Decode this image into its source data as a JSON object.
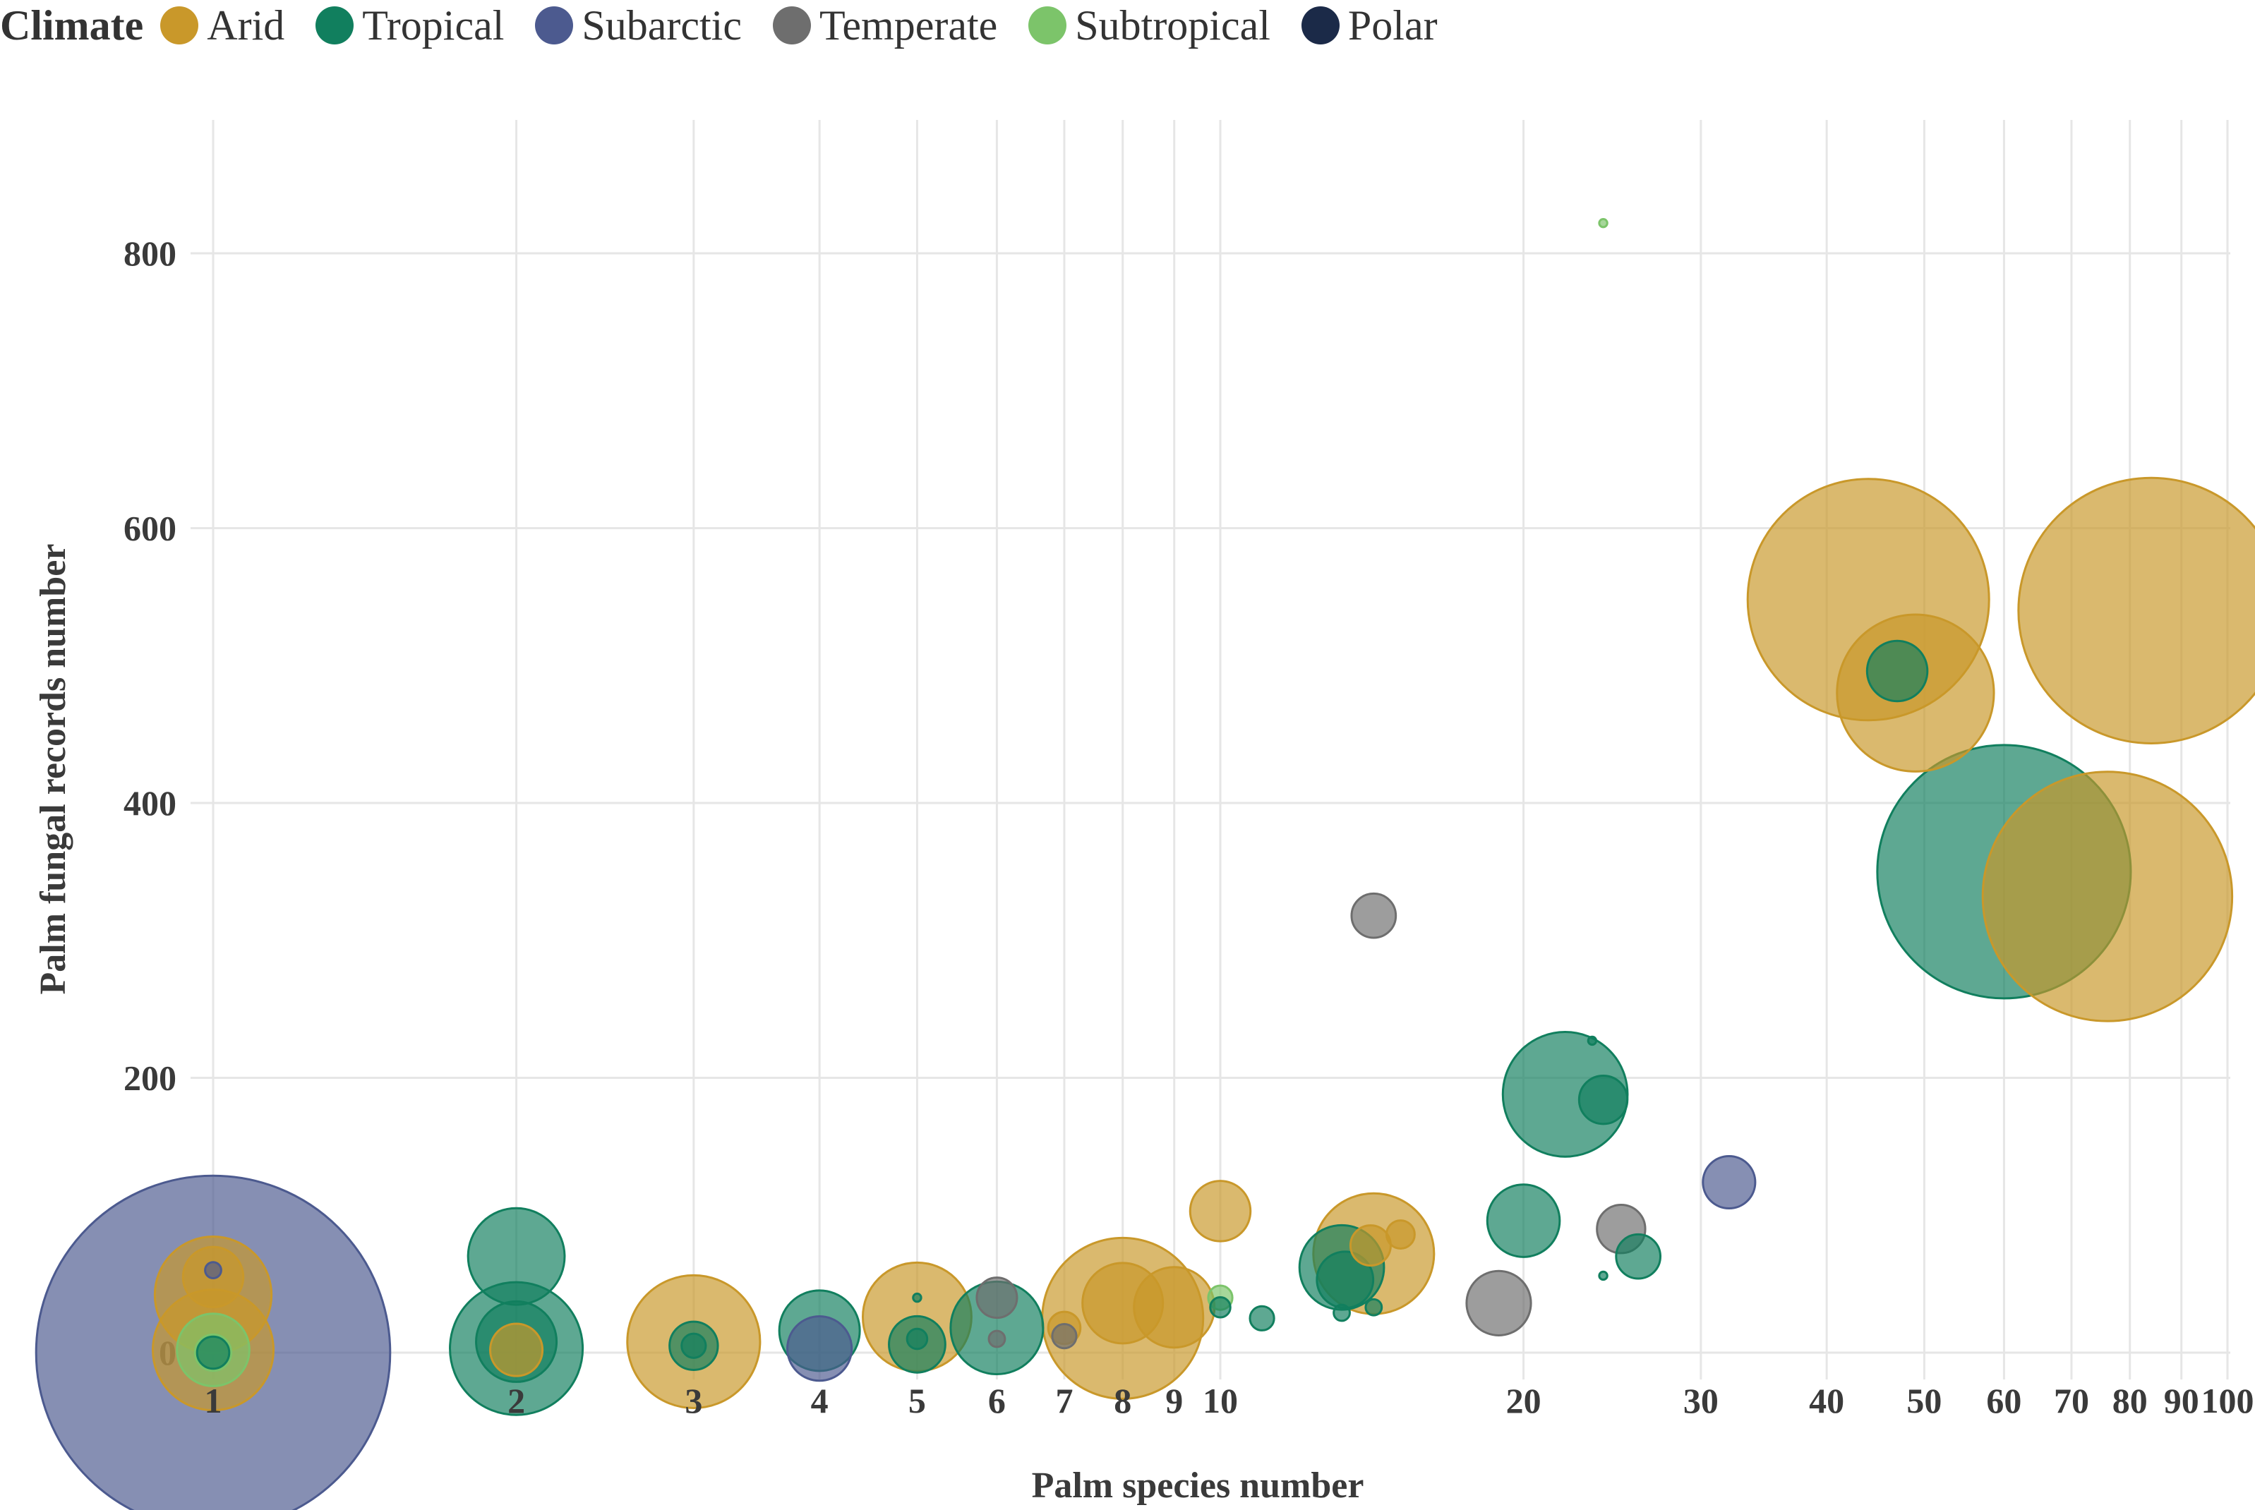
{
  "chart_data": {
    "type": "scatter",
    "subtype": "bubble",
    "title": "",
    "xlabel": "Palm species number",
    "ylabel": "Palm fungal records number",
    "x_scale": "log",
    "xlim": [
      1,
      100
    ],
    "ylim": [
      -20,
      890
    ],
    "x_ticks": [
      1,
      2,
      3,
      4,
      5,
      6,
      7,
      8,
      9,
      10,
      20,
      30,
      40,
      50,
      60,
      70,
      80,
      90,
      100
    ],
    "x_tick_labels": [
      "1",
      "2",
      "3",
      "4",
      "5",
      "6",
      "7",
      "8",
      "9",
      "10",
      "20",
      "30",
      "40",
      "50",
      "60",
      "70",
      "80",
      "90",
      "100"
    ],
    "y_ticks": [
      0,
      200,
      400,
      600,
      800
    ],
    "y_tick_labels": [
      "0",
      "200",
      "400",
      "600",
      "800"
    ],
    "grid": true,
    "legend": {
      "title": "Climate",
      "position": "top-left",
      "entries": [
        {
          "name": "Arid",
          "color": "#C9982A"
        },
        {
          "name": "Tropical",
          "color": "#117F5E"
        },
        {
          "name": "Subarctic",
          "color": "#4C5A8F"
        },
        {
          "name": "Temperate",
          "color": "#6E6E6E"
        },
        {
          "name": "Subtropical",
          "color": "#7CC46A"
        },
        {
          "name": "Polar",
          "color": "#1B2A48"
        }
      ]
    },
    "size_note": "relative bubble size",
    "points": [
      {
        "climate": "Subarctic",
        "x": 1,
        "y": 0,
        "size": 88
      },
      {
        "climate": "Arid",
        "x": 1,
        "y": 42,
        "size": 29
      },
      {
        "climate": "Arid",
        "x": 1,
        "y": 2,
        "size": 30
      },
      {
        "climate": "Arid",
        "x": 1,
        "y": 55,
        "size": 15
      },
      {
        "climate": "Subtropical",
        "x": 1,
        "y": 2,
        "size": 18
      },
      {
        "climate": "Subtropical",
        "x": 1,
        "y": 0,
        "size": 9
      },
      {
        "climate": "Tropical",
        "x": 1,
        "y": 0,
        "size": 8
      },
      {
        "climate": "Subarctic",
        "x": 1,
        "y": 60,
        "size": 4
      },
      {
        "climate": "Tropical",
        "x": 2,
        "y": 3,
        "size": 33
      },
      {
        "climate": "Tropical",
        "x": 2,
        "y": 70,
        "size": 24
      },
      {
        "climate": "Tropical",
        "x": 2,
        "y": 8,
        "size": 20
      },
      {
        "climate": "Arid",
        "x": 2,
        "y": 2,
        "size": 13
      },
      {
        "climate": "Arid",
        "x": 3,
        "y": 8,
        "size": 33
      },
      {
        "climate": "Tropical",
        "x": 3,
        "y": 5,
        "size": 12
      },
      {
        "climate": "Tropical",
        "x": 3,
        "y": 5,
        "size": 6
      },
      {
        "climate": "Tropical",
        "x": 4,
        "y": 16,
        "size": 20
      },
      {
        "climate": "Subarctic",
        "x": 4,
        "y": 3,
        "size": 16
      },
      {
        "climate": "Arid",
        "x": 5,
        "y": 26,
        "size": 27
      },
      {
        "climate": "Tropical",
        "x": 5,
        "y": 6,
        "size": 14
      },
      {
        "climate": "Tropical",
        "x": 5,
        "y": 10,
        "size": 5
      },
      {
        "climate": "Tropical",
        "x": 5,
        "y": 40,
        "size": 2
      },
      {
        "climate": "Tropical",
        "x": 6,
        "y": 18,
        "size": 23
      },
      {
        "climate": "Temperate",
        "x": 6,
        "y": 40,
        "size": 10
      },
      {
        "climate": "Temperate",
        "x": 6,
        "y": 10,
        "size": 4
      },
      {
        "climate": "Arid",
        "x": 7,
        "y": 18,
        "size": 8
      },
      {
        "climate": "Temperate",
        "x": 7,
        "y": 12,
        "size": 6
      },
      {
        "climate": "Arid",
        "x": 8,
        "y": 25,
        "size": 40
      },
      {
        "climate": "Arid",
        "x": 8,
        "y": 36,
        "size": 20
      },
      {
        "climate": "Arid",
        "x": 9,
        "y": 33,
        "size": 20
      },
      {
        "climate": "Arid",
        "x": 10,
        "y": 103,
        "size": 15
      },
      {
        "climate": "Subtropical",
        "x": 10,
        "y": 40,
        "size": 6
      },
      {
        "climate": "Tropical",
        "x": 10,
        "y": 33,
        "size": 5
      },
      {
        "climate": "Tropical",
        "x": 11,
        "y": 25,
        "size": 6
      },
      {
        "climate": "Arid",
        "x": 14.2,
        "y": 72,
        "size": 30
      },
      {
        "climate": "Tropical",
        "x": 13.2,
        "y": 62,
        "size": 21
      },
      {
        "climate": "Tropical",
        "x": 13.3,
        "y": 53,
        "size": 14
      },
      {
        "climate": "Arid",
        "x": 14.1,
        "y": 78,
        "size": 10
      },
      {
        "climate": "Arid",
        "x": 15.1,
        "y": 86,
        "size": 7
      },
      {
        "climate": "Temperate",
        "x": 14.2,
        "y": 318,
        "size": 11
      },
      {
        "climate": "Tropical",
        "x": 13.2,
        "y": 29,
        "size": 4
      },
      {
        "climate": "Tropical",
        "x": 14.2,
        "y": 33,
        "size": 4
      },
      {
        "climate": "Temperate",
        "x": 18.9,
        "y": 36,
        "size": 16
      },
      {
        "climate": "Tropical",
        "x": 20,
        "y": 96,
        "size": 18
      },
      {
        "climate": "Tropical",
        "x": 22,
        "y": 188,
        "size": 31
      },
      {
        "climate": "Tropical",
        "x": 24,
        "y": 184,
        "size": 12
      },
      {
        "climate": "Tropical",
        "x": 23.4,
        "y": 227,
        "size": 2
      },
      {
        "climate": "Subtropical",
        "x": 24,
        "y": 822,
        "size": 2
      },
      {
        "climate": "Tropical",
        "x": 24,
        "y": 56,
        "size": 2
      },
      {
        "climate": "Temperate",
        "x": 25,
        "y": 90,
        "size": 12
      },
      {
        "climate": "Tropical",
        "x": 26,
        "y": 70,
        "size": 11
      },
      {
        "climate": "Subarctic",
        "x": 32,
        "y": 124,
        "size": 13
      },
      {
        "climate": "Arid",
        "x": 44,
        "y": 548,
        "size": 60
      },
      {
        "climate": "Arid",
        "x": 49,
        "y": 480,
        "size": 39
      },
      {
        "climate": "Tropical",
        "x": 47,
        "y": 496,
        "size": 15
      },
      {
        "climate": "Tropical",
        "x": 60,
        "y": 350,
        "size": 63
      },
      {
        "climate": "Arid",
        "x": 76,
        "y": 332,
        "size": 62
      },
      {
        "climate": "Arid",
        "x": 84,
        "y": 540,
        "size": 66
      }
    ]
  }
}
